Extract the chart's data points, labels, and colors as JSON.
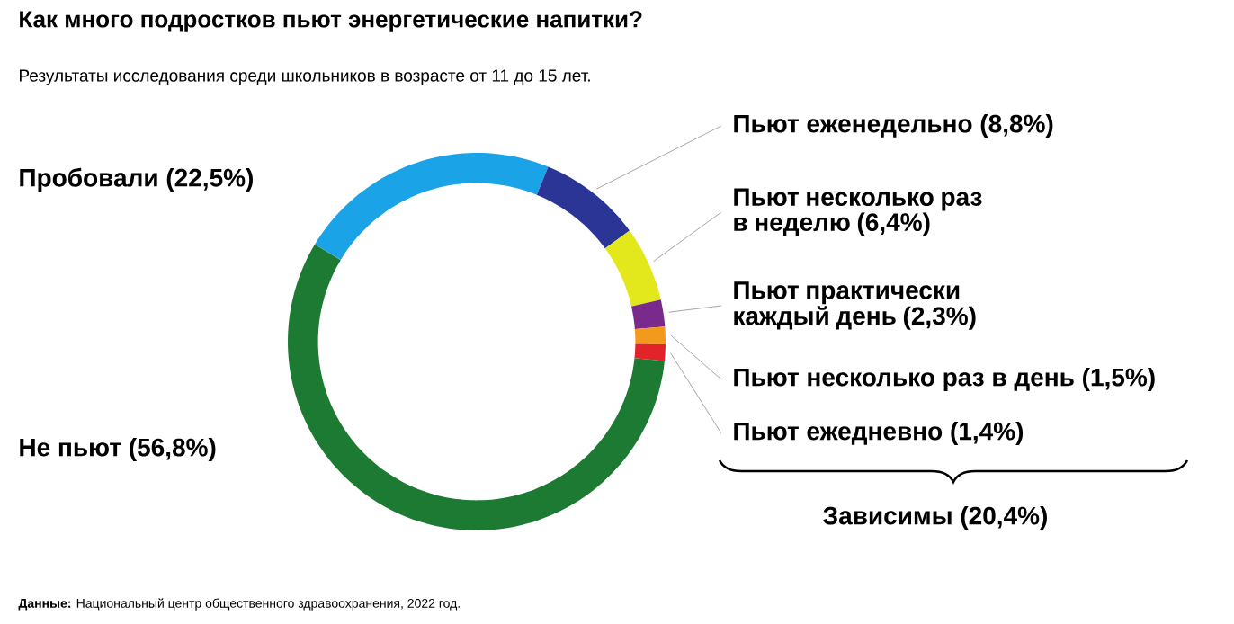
{
  "chart_data": {
    "type": "donut",
    "title": "Как много подростков пьют энергетические напитки?",
    "subtitle": "Результаты исследования среди школьников в возрасте от 11 до 15 лет.",
    "categories": [
      "Пробовали (22,5%)",
      "Пьют еженедельно (8,8%)",
      "Пьют несколько раз в неделю (6,4%)",
      "Пьют практически каждый день (2,3%)",
      "Пьют несколько раз в день (1,5%)",
      "Пьют ежедневно (1,4%)",
      "Не пьют (56,8%)"
    ],
    "values": [
      22.5,
      8.8,
      6.4,
      2.3,
      1.5,
      1.4,
      56.8
    ],
    "colors": [
      "#1aa3e6",
      "#2b3596",
      "#e2e81c",
      "#7a2a8c",
      "#f39a1c",
      "#e2242a",
      "#1c7a33"
    ],
    "annotations": [
      "Зависимы (20,4%)",
      "**Данные:** Национальный центр общественного здравоохранения, 2022 год."
    ]
  }
}
